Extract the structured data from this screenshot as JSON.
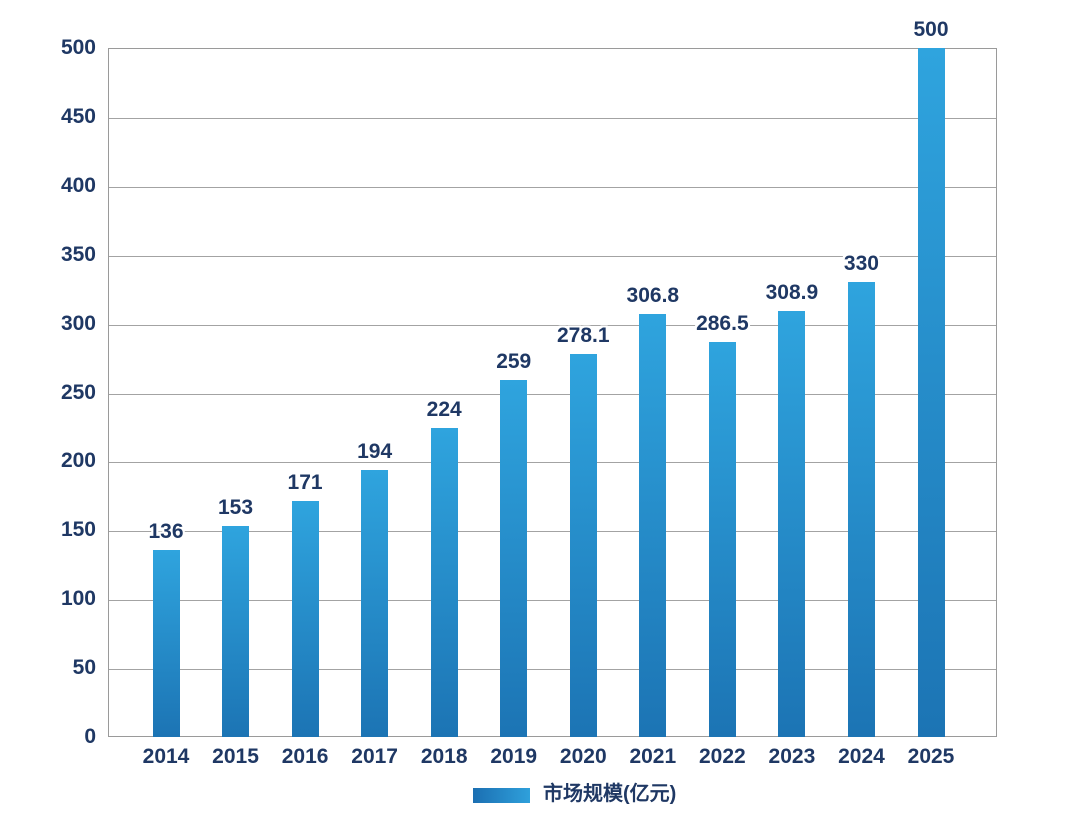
{
  "chart_data": {
    "type": "bar",
    "categories": [
      "2014",
      "2015",
      "2016",
      "2017",
      "2018",
      "2019",
      "2020",
      "2021",
      "2022",
      "2023",
      "2024",
      "2025"
    ],
    "values": [
      136,
      153,
      171,
      194,
      224,
      259,
      278.1,
      306.8,
      286.5,
      308.9,
      330,
      500
    ],
    "title": "",
    "xlabel": "",
    "ylabel": "",
    "ylim": [
      0,
      500
    ],
    "ytick_step": 50,
    "ytick_labels": [
      "0",
      "50",
      "100",
      "150",
      "200",
      "250",
      "300",
      "350",
      "400",
      "450",
      "500"
    ],
    "grid": true,
    "legend_entries": [
      "市场规模(亿元)"
    ],
    "legend_position": "bottom-center",
    "bar_value_labels_shown": true
  },
  "legend": {
    "label": "市场规模(亿元)"
  },
  "colors": {
    "background": "#ffffff",
    "label_text": "#1F3864",
    "grid_line": "#A3A3A3",
    "plot_border": "#9A9A9A",
    "bar_top": "#2FA4DE",
    "bar_bottom": "#1C74B4",
    "legend_swatch_left": "#1B6FB2",
    "legend_swatch_right": "#2FA0DB"
  }
}
